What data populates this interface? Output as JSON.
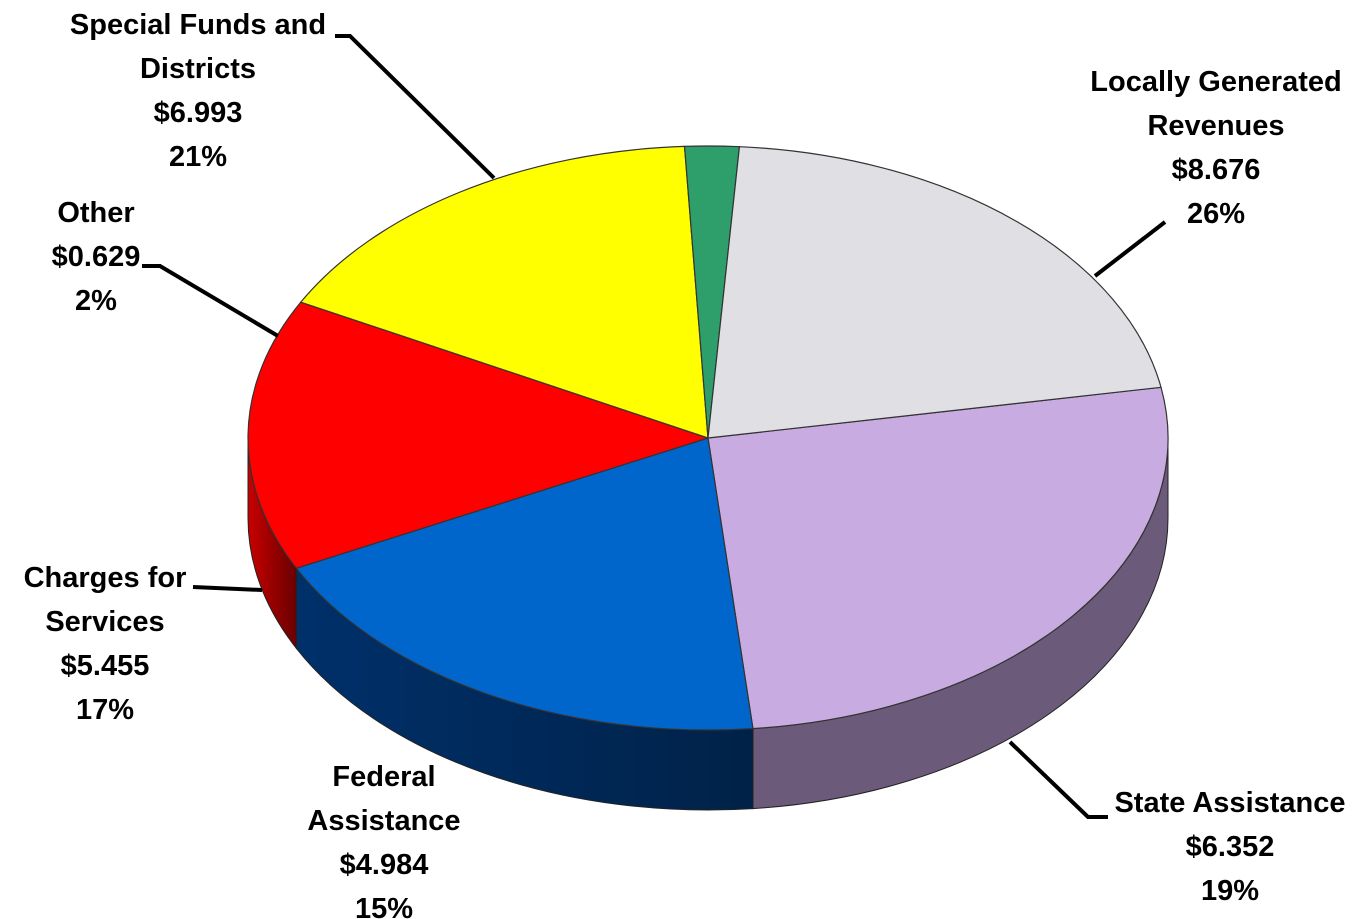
{
  "chart_data": {
    "type": "pie",
    "style": "3d-exploded-none",
    "start_angle_note": "clockwise from top",
    "slices": [
      {
        "name_lines": [
          "Locally Generated",
          "Revenues"
        ],
        "value": 8.676,
        "amount_label": "$8.676",
        "percent_label": "26%",
        "color": "#C8ABE0",
        "side_color": "#6B5A7A"
      },
      {
        "name_lines": [
          "State Assistance"
        ],
        "value": 6.352,
        "amount_label": "$6.352",
        "percent_label": "19%",
        "color": "#0066CC",
        "side_color": "#002A55"
      },
      {
        "name_lines": [
          "Federal",
          "Assistance"
        ],
        "value": 4.984,
        "amount_label": "$4.984",
        "percent_label": "15%",
        "color": "#FF0000",
        "side_color": "#8B0000"
      },
      {
        "name_lines": [
          "Charges for",
          "Services"
        ],
        "value": 5.455,
        "amount_label": "$5.455",
        "percent_label": "17%",
        "color": "#FFFF00",
        "side_color": "#C8C800"
      },
      {
        "name_lines": [
          "Other"
        ],
        "value": 0.629,
        "amount_label": "$0.629",
        "percent_label": "2%",
        "color": "#2E9E6B",
        "side_color": "#1D6B47"
      },
      {
        "name_lines": [
          "Special Funds and",
          "Districts"
        ],
        "value": 6.993,
        "amount_label": "$6.993",
        "percent_label": "21%",
        "color": "#E0E0E4",
        "side_color": "#9A9AA0"
      }
    ]
  }
}
